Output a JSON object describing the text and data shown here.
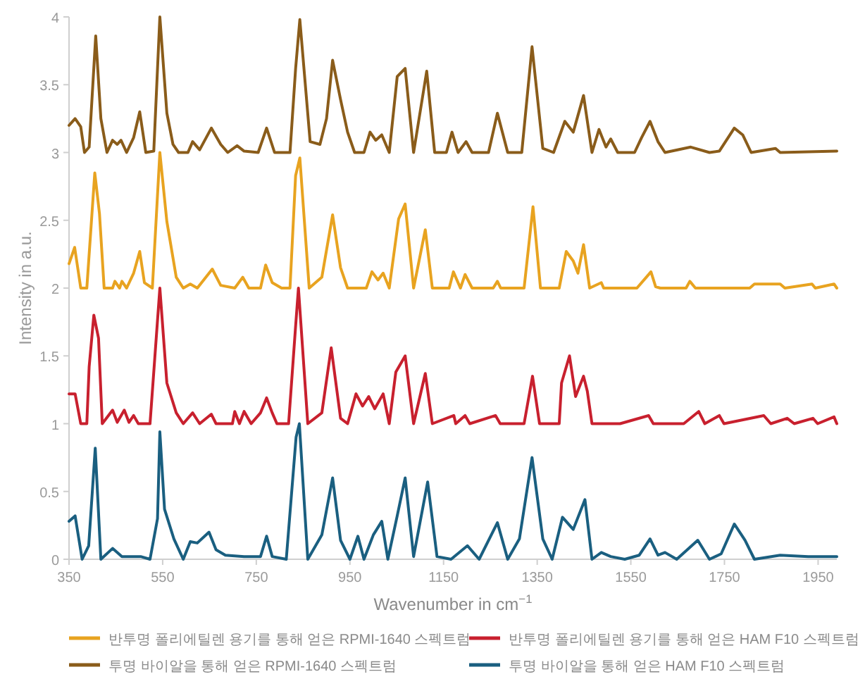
{
  "chart_data": {
    "type": "line",
    "xlabel": "Wavenumber in cm$^{−1}$",
    "ylabel": "Intensity in a.u.",
    "xlim": [
      350,
      1990
    ],
    "xticks": [
      350,
      550,
      750,
      950,
      1150,
      1350,
      1550,
      1750,
      1950
    ],
    "ylim": [
      0,
      4
    ],
    "yticks": [
      0,
      0.5,
      1,
      1.5,
      2,
      2.5,
      3,
      3.5,
      4
    ],
    "grid": false,
    "legend": "bottom",
    "marker": "none",
    "line_style": "solid",
    "series": [
      {
        "name": "반투명 폴리에틸렌 용기를 통해 얻은 RPMI-1640 스펙트럼",
        "color": "#e8a320",
        "x": [
          350,
          362,
          375,
          388,
          405,
          415,
          425,
          443,
          448,
          458,
          463,
          473,
          488,
          501,
          511,
          528,
          544,
          559,
          579,
          594,
          609,
          624,
          656,
          674,
          704,
          721,
          734,
          759,
          770,
          784,
          804,
          822,
          834,
          843,
          863,
          890,
          913,
          930,
          945,
          985,
          997,
          1010,
          1021,
          1034,
          1054,
          1068,
          1086,
          1111,
          1126,
          1162,
          1171,
          1186,
          1196,
          1211,
          1256,
          1265,
          1272,
          1322,
          1341,
          1357,
          1397,
          1412,
          1427,
          1437,
          1449,
          1462,
          1487,
          1492,
          1563,
          1583,
          1593,
          1603,
          1613,
          1668,
          1676,
          1688,
          1804,
          1814,
          1834,
          1869,
          1879,
          1937,
          1944,
          1984,
          1990
        ],
        "values": [
          2.18,
          2.3,
          2,
          2,
          2.85,
          2.55,
          2,
          2,
          2.05,
          2,
          2.05,
          2,
          2.11,
          2.27,
          2.04,
          2,
          3,
          2.49,
          2.08,
          2,
          2.03,
          2,
          2.14,
          2.02,
          2,
          2.08,
          2,
          2,
          2.17,
          2.04,
          2,
          2,
          2.83,
          2.96,
          2,
          2.08,
          2.54,
          2.15,
          2,
          2,
          2.12,
          2.06,
          2.11,
          2,
          2.51,
          2.62,
          2,
          2.43,
          2,
          2,
          2.12,
          2,
          2.1,
          2,
          2,
          2.05,
          2,
          2,
          2.6,
          2,
          2,
          2.27,
          2.2,
          2.11,
          2.32,
          2,
          2.04,
          2,
          2,
          2.08,
          2.12,
          2.01,
          2,
          2,
          2.05,
          2,
          2,
          2.03,
          2.03,
          2.03,
          2,
          2.03,
          2,
          2.03,
          2
        ]
      },
      {
        "name": "반투명 폴리에틸렌 용기를 통해 얻은 HAM F10 스펙트럼",
        "color": "#c8202e",
        "x": [
          350,
          363,
          375,
          388,
          393,
          403,
          413,
          421,
          443,
          453,
          468,
          478,
          488,
          498,
          523,
          544,
          559,
          579,
          594,
          614,
          629,
          654,
          664,
          699,
          704,
          714,
          724,
          739,
          759,
          772,
          784,
          794,
          819,
          834,
          840,
          860,
          890,
          910,
          930,
          945,
          963,
          977,
          990,
          1003,
          1021,
          1034,
          1048,
          1068,
          1086,
          1111,
          1126,
          1172,
          1176,
          1196,
          1206,
          1261,
          1271,
          1322,
          1340,
          1355,
          1397,
          1402,
          1419,
          1432,
          1449,
          1457,
          1467,
          1527,
          1588,
          1598,
          1663,
          1695,
          1708,
          1739,
          1749,
          1834,
          1849,
          1884,
          1899,
          1939,
          1949,
          1984,
          1990
        ],
        "values": [
          1.22,
          1.22,
          1,
          1,
          1.42,
          1.8,
          1.63,
          1,
          1.1,
          1.01,
          1.1,
          1.01,
          1.06,
          1,
          1,
          2,
          1.3,
          1.08,
          1,
          1.08,
          1,
          1.07,
          1,
          1,
          1.09,
          1,
          1.09,
          1,
          1.08,
          1.19,
          1.08,
          1,
          1,
          1.72,
          2,
          1,
          1.08,
          1.56,
          1.04,
          1,
          1.22,
          1.13,
          1.2,
          1.11,
          1.22,
          1,
          1.38,
          1.5,
          1,
          1.37,
          1,
          1.06,
          1,
          1.06,
          1,
          1.06,
          1,
          1,
          1.35,
          1,
          1,
          1.3,
          1.5,
          1.2,
          1.35,
          1.24,
          1,
          1,
          1.06,
          1,
          1,
          1.09,
          1,
          1.06,
          1,
          1.06,
          1,
          1.04,
          1,
          1.04,
          1,
          1.05,
          1
        ]
      },
      {
        "name": "투명 바이알을 통해 얻은 RPMI-1640 스펙트럼",
        "color": "#8a5c1a",
        "x": [
          350,
          363,
          375,
          383,
          393,
          407,
          418,
          431,
          443,
          453,
          461,
          473,
          488,
          501,
          514,
          531,
          544,
          559,
          572,
          584,
          604,
          614,
          629,
          654,
          674,
          689,
          709,
          724,
          754,
          772,
          789,
          822,
          834,
          843,
          865,
          886,
          900,
          913,
          930,
          945,
          960,
          980,
          993,
          1005,
          1018,
          1034,
          1051,
          1068,
          1086,
          1114,
          1131,
          1156,
          1168,
          1181,
          1198,
          1211,
          1246,
          1265,
          1287,
          1317,
          1339,
          1362,
          1385,
          1409,
          1427,
          1449,
          1467,
          1482,
          1497,
          1507,
          1522,
          1558,
          1573,
          1591,
          1608,
          1623,
          1678,
          1718,
          1739,
          1771,
          1789,
          1807,
          1859,
          1869,
          1990
        ],
        "values": [
          3.2,
          3.25,
          3.19,
          3,
          3.04,
          3.86,
          3.25,
          3,
          3.09,
          3.06,
          3.09,
          3,
          3.11,
          3.3,
          3,
          3.01,
          4,
          3.29,
          3.06,
          3,
          3,
          3.08,
          3.02,
          3.18,
          3.06,
          3,
          3.05,
          3.01,
          3,
          3.18,
          3,
          3,
          3.62,
          3.98,
          3.08,
          3.06,
          3.25,
          3.68,
          3.39,
          3.15,
          3,
          3,
          3.15,
          3.09,
          3.13,
          3,
          3.56,
          3.62,
          3,
          3.6,
          3,
          3,
          3.15,
          3,
          3.08,
          3,
          3,
          3.29,
          3,
          3,
          3.78,
          3.03,
          3,
          3.23,
          3.15,
          3.42,
          3,
          3.17,
          3.04,
          3.1,
          3,
          3,
          3.11,
          3.23,
          3.08,
          3,
          3.04,
          3,
          3.01,
          3.18,
          3.13,
          3,
          3.03,
          3,
          3.01
        ]
      },
      {
        "name": "투명 바이알을 통해 얻은 HAM F10 스펙트럼",
        "color": "#1a5f80",
        "x": [
          350,
          363,
          378,
          392,
          406,
          418,
          443,
          463,
          483,
          503,
          523,
          539,
          544,
          554,
          574,
          594,
          609,
          624,
          649,
          664,
          684,
          724,
          759,
          772,
          784,
          814,
          835,
          842,
          860,
          890,
          913,
          930,
          950,
          967,
          980,
          1000,
          1018,
          1031,
          1051,
          1068,
          1086,
          1116,
          1136,
          1166,
          1201,
          1226,
          1265,
          1287,
          1312,
          1339,
          1362,
          1382,
          1404,
          1427,
          1452,
          1467,
          1487,
          1507,
          1537,
          1568,
          1591,
          1608,
          1623,
          1648,
          1693,
          1718,
          1743,
          1771,
          1794,
          1814,
          1869,
          1929,
          1990
        ],
        "values": [
          0.28,
          0.32,
          0,
          0.1,
          0.82,
          0,
          0.08,
          0.02,
          0.02,
          0.02,
          0,
          0.3,
          0.94,
          0.37,
          0.15,
          0,
          0.13,
          0.12,
          0.2,
          0.07,
          0.03,
          0.02,
          0.02,
          0.17,
          0.02,
          0,
          0.9,
          1,
          0,
          0.18,
          0.6,
          0.14,
          0,
          0.17,
          0,
          0.18,
          0.28,
          0,
          0.32,
          0.6,
          0.02,
          0.57,
          0.02,
          0,
          0.1,
          0,
          0.27,
          0,
          0.15,
          0.75,
          0.15,
          0,
          0.31,
          0.22,
          0.44,
          0,
          0.05,
          0.02,
          0,
          0.03,
          0.15,
          0.03,
          0.05,
          0,
          0.14,
          0,
          0.04,
          0.26,
          0.14,
          0,
          0.03,
          0.02,
          0.02
        ]
      }
    ]
  }
}
